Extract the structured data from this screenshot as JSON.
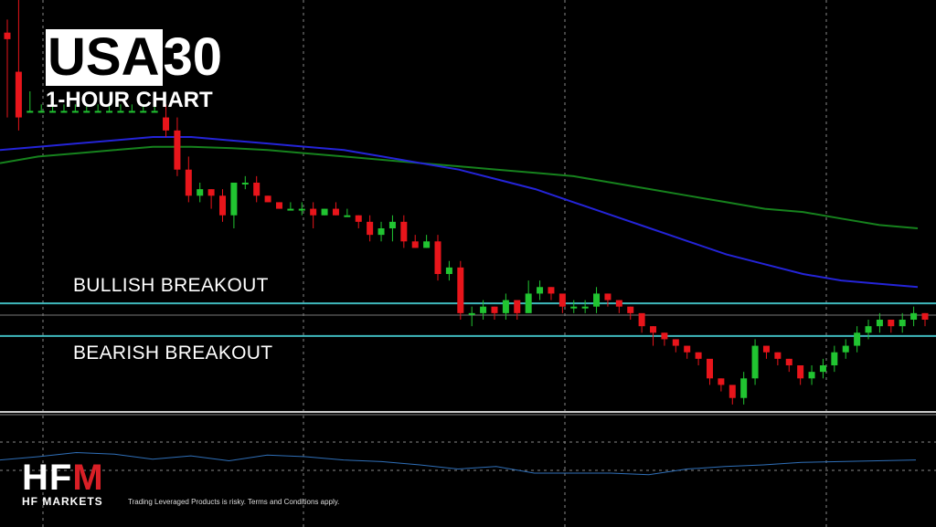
{
  "title": {
    "symbol": "USA",
    "number": "30",
    "subtitle": "1-HOUR CHART"
  },
  "levels": {
    "bullish": "BULLISH BREAKOUT",
    "bearish": "BEARISH BREAKOUT"
  },
  "brand": {
    "logo": "HFM",
    "name": "HF MARKETS",
    "disclaimer": "Trading Leveraged Products is risky. Terms and Conditions apply."
  },
  "colors": {
    "up": "#21c431",
    "down": "#e8151b",
    "ma_fast": "#2424d8",
    "ma_slow": "#16821d",
    "level": "#3fb9bd",
    "oscillator": "#2f6fb8"
  },
  "chart_data": {
    "type": "candlestick",
    "ylim": [
      -32,
      31
    ],
    "candles": [
      [
        26,
        25,
        28,
        13
      ],
      [
        20,
        13,
        31,
        11
      ],
      [
        14,
        14,
        17,
        14
      ],
      [
        14,
        14,
        15,
        14
      ],
      [
        14,
        14,
        15,
        14
      ],
      [
        14,
        14,
        15,
        14
      ],
      [
        14,
        14,
        15,
        14
      ],
      [
        14,
        14,
        15,
        14
      ],
      [
        14,
        14,
        15,
        14
      ],
      [
        14,
        14,
        15,
        14
      ],
      [
        14,
        14,
        15,
        14
      ],
      [
        14,
        14,
        15,
        14
      ],
      [
        14,
        14,
        15,
        14
      ],
      [
        14,
        14,
        15,
        14
      ],
      [
        13,
        11,
        15,
        10
      ],
      [
        11,
        5,
        13,
        4
      ],
      [
        5,
        1,
        7,
        0
      ],
      [
        1,
        2,
        3,
        0
      ],
      [
        2,
        1,
        2,
        -1
      ],
      [
        1,
        -2,
        2,
        -3
      ],
      [
        -2,
        3,
        3,
        -4
      ],
      [
        3,
        3,
        4,
        2
      ],
      [
        3,
        1,
        4,
        0
      ],
      [
        1,
        0,
        1,
        0
      ],
      [
        0,
        -1,
        0,
        -1
      ],
      [
        -1,
        -1,
        0,
        -1
      ],
      [
        -1,
        -1,
        0,
        -2
      ],
      [
        -1,
        -2,
        0,
        -4
      ],
      [
        -2,
        -1,
        -1,
        -2
      ],
      [
        -1,
        -2,
        0,
        -2
      ],
      [
        -2,
        -2,
        -1,
        -2
      ],
      [
        -2,
        -3,
        -2,
        -4
      ],
      [
        -3,
        -5,
        -2,
        -6
      ],
      [
        -5,
        -4,
        -3,
        -6
      ],
      [
        -4,
        -3,
        -2,
        -6
      ],
      [
        -3,
        -6,
        -2,
        -7
      ],
      [
        -6,
        -7,
        -5,
        -7
      ],
      [
        -7,
        -6,
        -5,
        -7
      ],
      [
        -6,
        -11,
        -5,
        -12
      ],
      [
        -11,
        -10,
        -9,
        -12
      ],
      [
        -10,
        -17,
        -9,
        -18
      ],
      [
        -17,
        -17,
        -16,
        -19
      ],
      [
        -17,
        -16,
        -15,
        -18
      ],
      [
        -16,
        -17,
        -16,
        -18
      ],
      [
        -17,
        -15,
        -14,
        -18
      ],
      [
        -15,
        -17,
        -16,
        -18
      ],
      [
        -17,
        -14,
        -12,
        -17
      ],
      [
        -14,
        -13,
        -12,
        -15
      ],
      [
        -13,
        -14,
        -13,
        -15
      ],
      [
        -14,
        -16,
        -15,
        -17
      ],
      [
        -16,
        -16,
        -15,
        -17
      ],
      [
        -16,
        -16,
        -15,
        -17
      ],
      [
        -16,
        -14,
        -13,
        -17
      ],
      [
        -14,
        -15,
        -14,
        -16
      ],
      [
        -15,
        -16,
        -15,
        -17
      ],
      [
        -16,
        -17,
        -16,
        -18
      ],
      [
        -17,
        -19,
        -18,
        -20
      ],
      [
        -19,
        -20,
        -19,
        -22
      ],
      [
        -20,
        -21,
        -20,
        -22
      ],
      [
        -21,
        -22,
        -21,
        -23
      ],
      [
        -22,
        -23,
        -22,
        -24
      ],
      [
        -23,
        -24,
        -23,
        -25
      ],
      [
        -24,
        -27,
        -26,
        -28
      ],
      [
        -27,
        -28,
        -27,
        -29
      ],
      [
        -28,
        -30,
        -29,
        -31
      ],
      [
        -30,
        -27,
        -26,
        -31
      ],
      [
        -27,
        -22,
        -21,
        -28
      ],
      [
        -22,
        -23,
        -22,
        -24
      ],
      [
        -23,
        -24,
        -23,
        -25
      ],
      [
        -24,
        -25,
        -24,
        -26
      ],
      [
        -25,
        -27,
        -26,
        -28
      ],
      [
        -27,
        -26,
        -25,
        -28
      ],
      [
        -26,
        -25,
        -24,
        -27
      ],
      [
        -25,
        -23,
        -22,
        -26
      ],
      [
        -23,
        -22,
        -21,
        -24
      ],
      [
        -22,
        -20,
        -19,
        -23
      ],
      [
        -20,
        -19,
        -18,
        -21
      ],
      [
        -19,
        -18,
        -17,
        -20
      ],
      [
        -18,
        -19,
        -18,
        -20
      ],
      [
        -19,
        -18,
        -17,
        -20
      ],
      [
        -18,
        -17,
        -16,
        -19
      ],
      [
        -17,
        -18,
        -17,
        -19
      ]
    ],
    "levels": [
      -15.5,
      -20.5
    ],
    "ma_fast": [
      8,
      8.5,
      9,
      9.5,
      10,
      10,
      9.5,
      9,
      8.5,
      8,
      7,
      6,
      5,
      3.5,
      2,
      0,
      -2,
      -4,
      -6,
      -8,
      -9.5,
      -11,
      -12,
      -12.5,
      -13
    ],
    "ma_slow": [
      6,
      7,
      7.5,
      8,
      8.5,
      8.5,
      8.3,
      8,
      7.5,
      7,
      6.5,
      6,
      5.5,
      5,
      4.5,
      4,
      3,
      2,
      1,
      0,
      -1,
      -1.5,
      -2.5,
      -3.5,
      -4
    ],
    "oscillator": [
      46,
      50,
      55,
      53,
      47,
      51,
      45,
      52,
      50,
      46,
      44,
      40,
      35,
      38,
      30,
      30,
      30,
      28,
      35,
      38,
      40,
      43,
      44,
      45,
      46
    ]
  }
}
